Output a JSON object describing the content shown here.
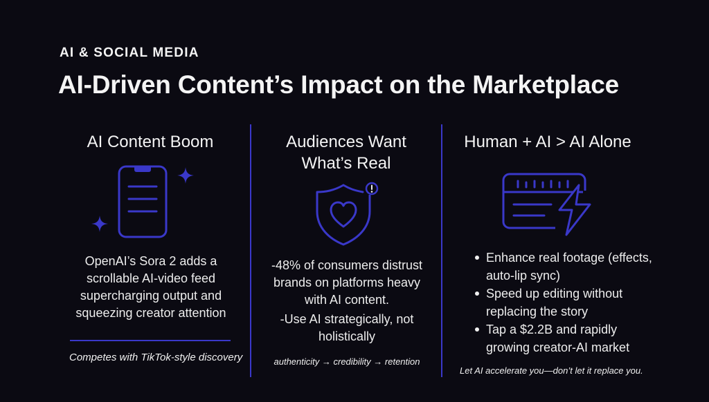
{
  "header": {
    "eyebrow": "AI & SOCIAL MEDIA",
    "title": "AI-Driven Content’s Impact on the Marketplace"
  },
  "colors": {
    "accent": "#3a38c9",
    "background": "#0b0a12",
    "text": "#f2f2f2"
  },
  "columns": [
    {
      "heading": "AI Content Boom",
      "icon": "smartphone-sparkle-icon",
      "body": "OpenAI’s Sora 2 adds a scrollable AI-video feed supercharging output and squeezing creator attention",
      "footnote": "Competes with TikTok-style discovery"
    },
    {
      "heading": "Audiences Want What’s Real",
      "icon": "shield-heart-icon",
      "body_lines": [
        "-48% of consumers distrust brands on platforms heavy with AI content.",
        "-Use AI strategically, not holistically"
      ],
      "footnote": "authenticity → credibility → retention"
    },
    {
      "heading": "Human + AI > AI Alone",
      "icon": "film-lightning-icon",
      "bullets": [
        "Enhance real footage (effects, auto-lip sync)",
        "Speed up editing without replacing the story",
        "Tap a $2.2B and rapidly growing creator-AI market"
      ],
      "footnote": "Let AI accelerate you—don’t let it replace you."
    }
  ]
}
